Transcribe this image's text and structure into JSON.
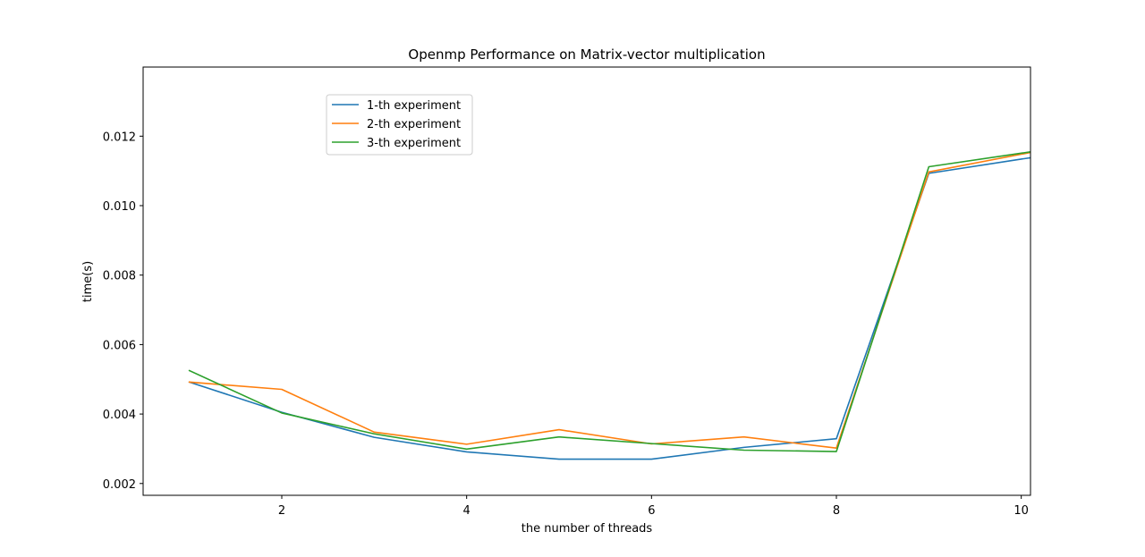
{
  "chart_data": {
    "type": "line",
    "title": "Openmp Performance on Matrix-vector multiplication",
    "xlabel": "the number of threads",
    "ylabel": "time(s)",
    "xlim": [
      0.5,
      10.1
    ],
    "ylim": [
      0.00166,
      0.01399
    ],
    "xticks": [
      2,
      4,
      6,
      8,
      10
    ],
    "yticks": [
      0.002,
      0.004,
      0.006,
      0.008,
      0.01,
      0.012
    ],
    "xtick_labels": [
      "2",
      "4",
      "6",
      "8",
      "10"
    ],
    "ytick_labels": [
      "0.002",
      "0.004",
      "0.006",
      "0.008",
      "0.010",
      "0.012"
    ],
    "grid": false,
    "legend_position": "upper-left",
    "x": [
      1,
      2,
      3,
      4,
      5,
      6,
      7,
      8,
      9,
      10,
      10.1
    ],
    "series": [
      {
        "name": "1-th experiment",
        "color": "#1f77b4",
        "values": [
          0.00492,
          0.00405,
          0.00333,
          0.00291,
          0.0027,
          0.0027,
          0.00304,
          0.00329,
          0.01093,
          0.01134,
          0.01138
        ]
      },
      {
        "name": "2-th experiment",
        "color": "#ff7f0e",
        "values": [
          0.00492,
          0.00471,
          0.00348,
          0.00313,
          0.00355,
          0.00314,
          0.00334,
          0.00302,
          0.01097,
          0.01148,
          0.01153
        ]
      },
      {
        "name": "3-th experiment",
        "color": "#2ca02c",
        "values": [
          0.00525,
          0.00403,
          0.00343,
          0.00299,
          0.00334,
          0.00315,
          0.00296,
          0.00292,
          0.01112,
          0.01151,
          0.01155
        ]
      }
    ]
  }
}
